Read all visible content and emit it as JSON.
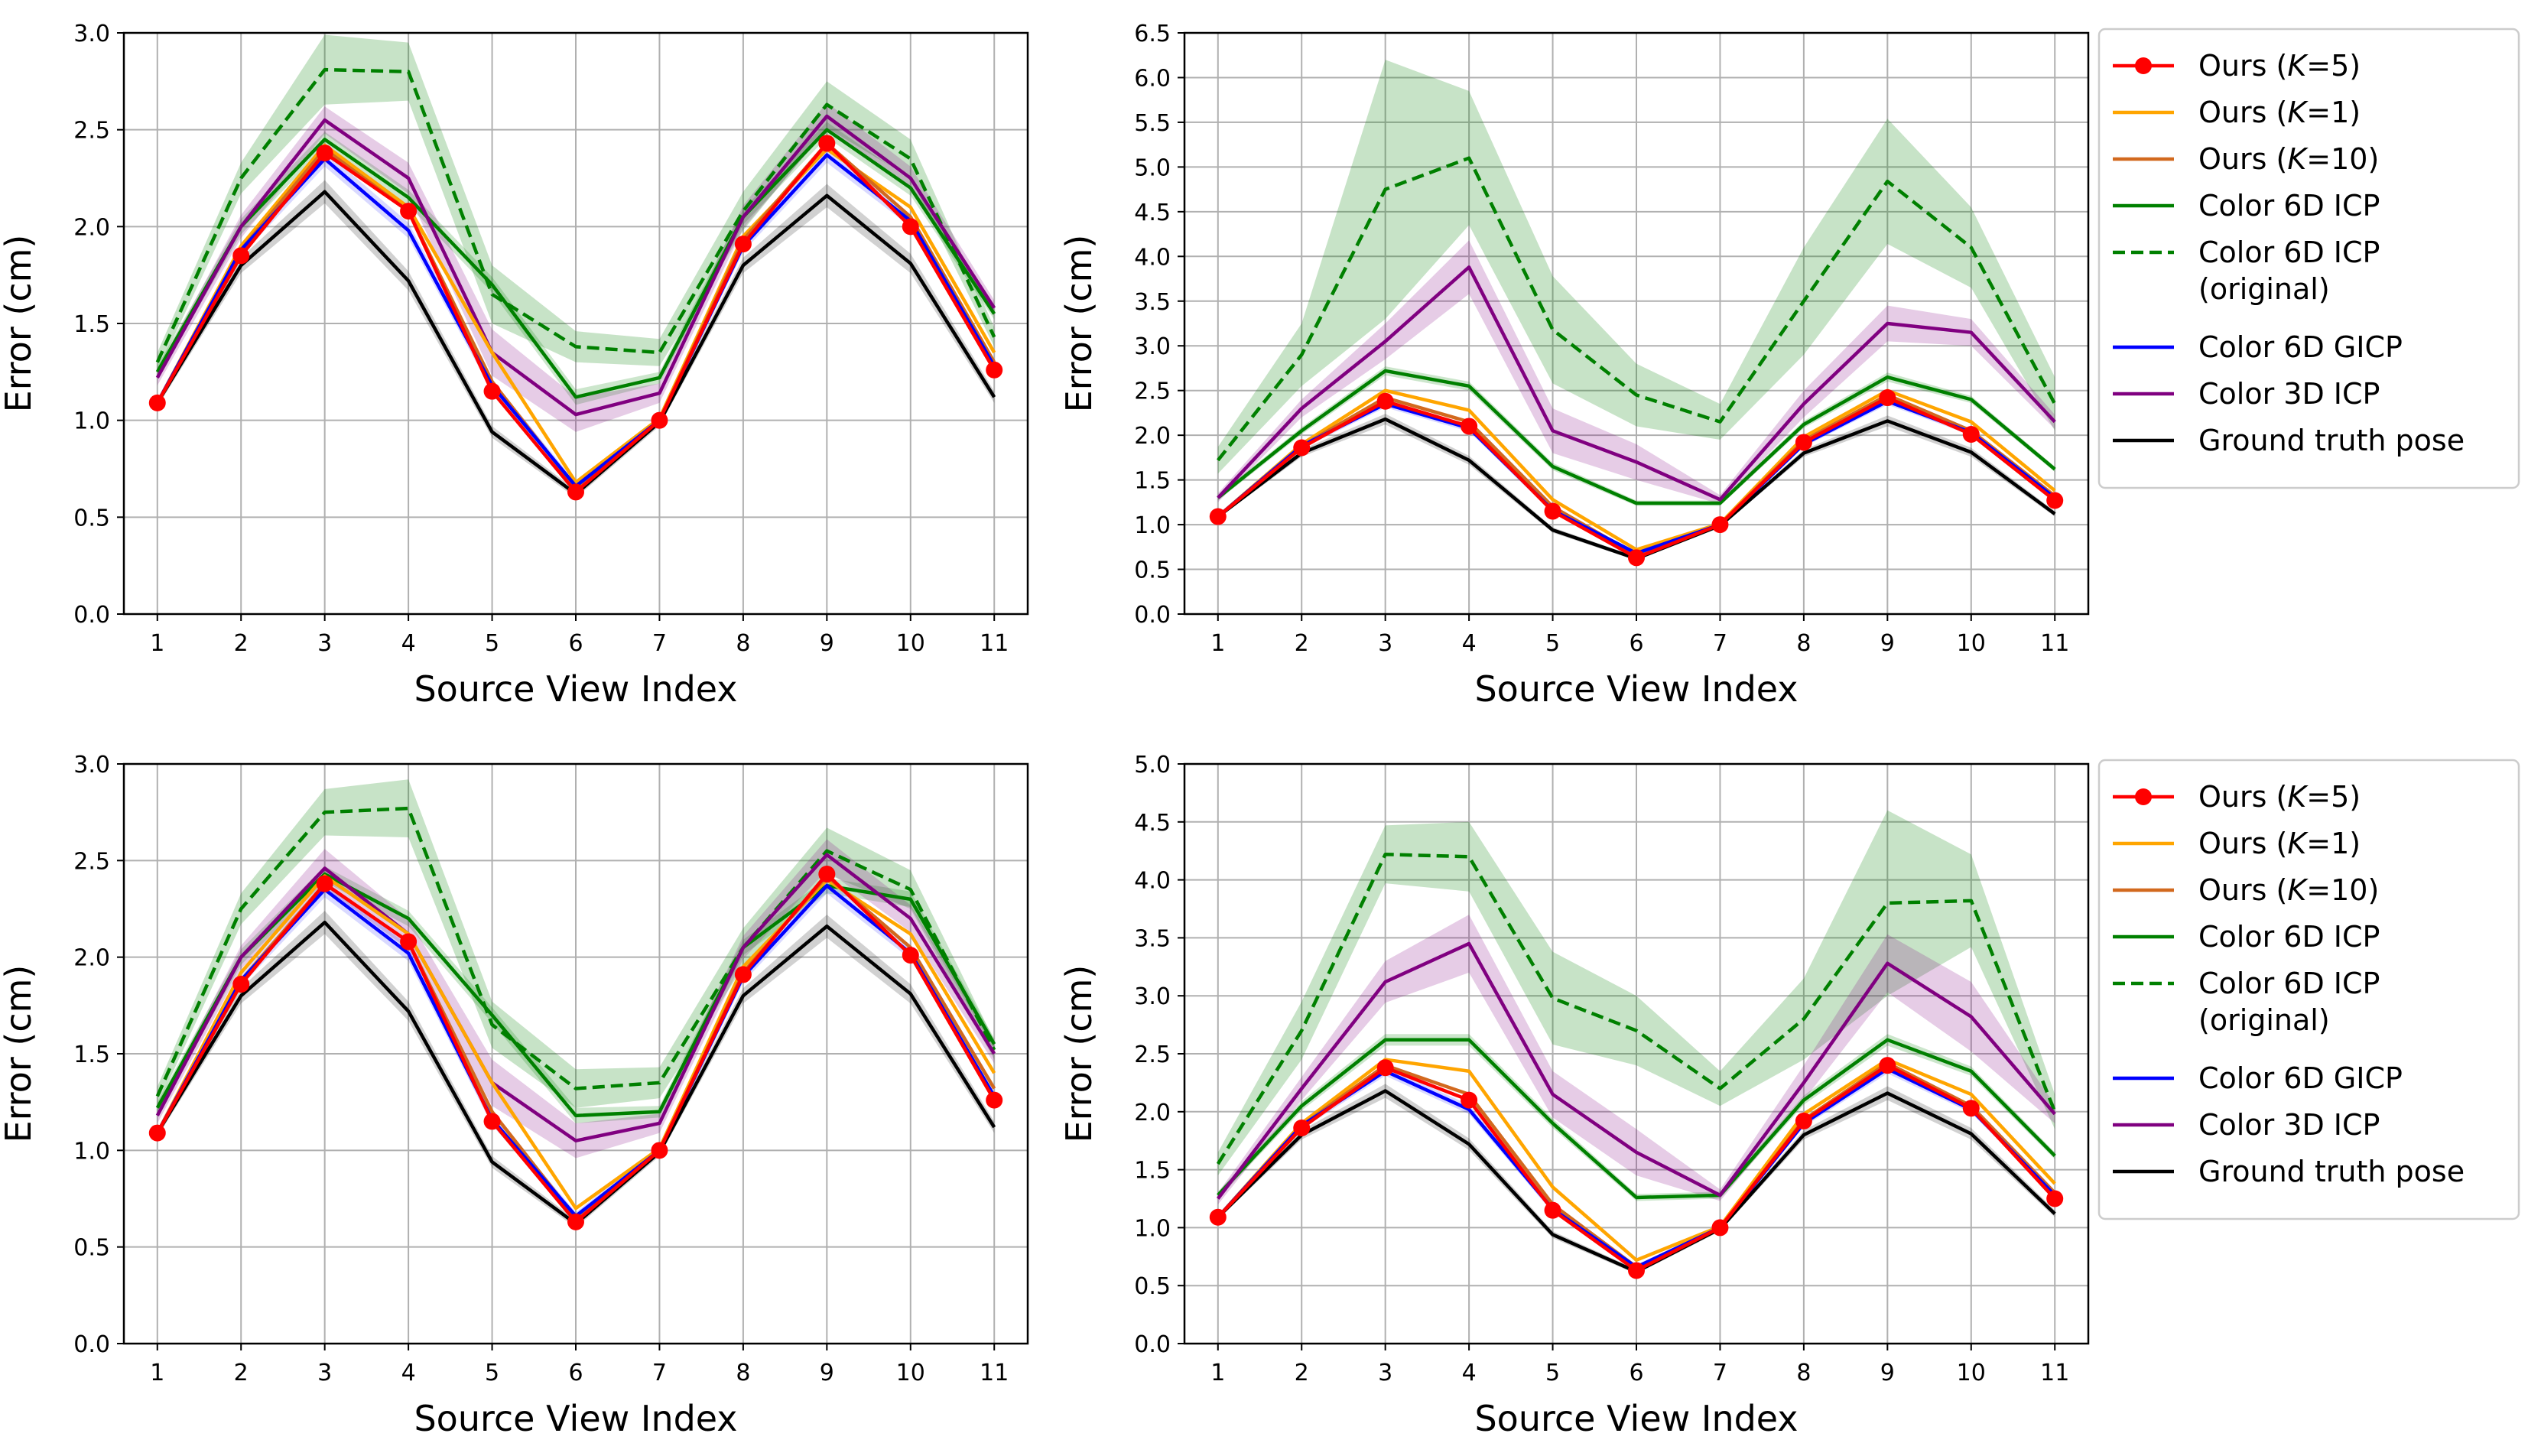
{
  "chart_data": [
    {
      "type": "line",
      "panel": "top-left",
      "xlabel": "Source View Index",
      "ylabel": "Error (cm)",
      "x": [
        1,
        2,
        3,
        4,
        5,
        6,
        7,
        8,
        9,
        10,
        11
      ],
      "xticks": [
        "1",
        "2",
        "3",
        "4",
        "5",
        "6",
        "7",
        "8",
        "9",
        "10",
        "11"
      ],
      "ylim": [
        0,
        3.0
      ],
      "yticks": [
        "0.0",
        "0.5",
        "1.0",
        "1.5",
        "2.0",
        "2.5",
        "3.0"
      ],
      "grid": true,
      "legend": null,
      "series": [
        {
          "name": "Color 6D ICP (original)",
          "values": [
            1.3,
            2.25,
            2.81,
            2.8,
            1.65,
            1.38,
            1.35,
            2.08,
            2.63,
            2.35,
            1.43
          ],
          "band": [
            0.05,
            0.08,
            0.18,
            0.15,
            0.15,
            0.08,
            0.07,
            0.1,
            0.12,
            0.1,
            0.05
          ]
        },
        {
          "name": "Color 6D ICP",
          "values": [
            1.25,
            2.0,
            2.45,
            2.15,
            1.7,
            1.12,
            1.22,
            2.05,
            2.5,
            2.2,
            1.55
          ],
          "band": [
            0.03,
            0.04,
            0.04,
            0.04,
            0.04,
            0.04,
            0.03,
            0.04,
            0.04,
            0.04,
            0.03
          ]
        },
        {
          "name": "Color 3D ICP",
          "values": [
            1.22,
            2.0,
            2.55,
            2.25,
            1.35,
            1.03,
            1.14,
            2.05,
            2.57,
            2.25,
            1.58
          ],
          "band": [
            0.04,
            0.06,
            0.07,
            0.08,
            0.12,
            0.09,
            0.05,
            0.06,
            0.07,
            0.06,
            0.04
          ]
        },
        {
          "name": "Ours (K=1)",
          "values": [
            1.09,
            1.9,
            2.42,
            2.1,
            1.35,
            0.68,
            1.01,
            1.95,
            2.4,
            2.1,
            1.35
          ],
          "band": null
        },
        {
          "name": "Ours (K=10)",
          "values": [
            1.09,
            1.88,
            2.4,
            2.08,
            1.2,
            0.65,
            1.0,
            1.93,
            2.43,
            2.05,
            1.3
          ],
          "band": null
        },
        {
          "name": "Color 6D GICP",
          "values": [
            1.09,
            1.88,
            2.35,
            1.98,
            1.18,
            0.66,
            1.0,
            1.9,
            2.37,
            2.03,
            1.28
          ],
          "band": [
            0.02,
            0.03,
            0.04,
            0.04,
            0.03,
            0.02,
            0.02,
            0.03,
            0.04,
            0.03,
            0.02
          ]
        },
        {
          "name": "Ground truth pose",
          "values": [
            1.09,
            1.8,
            2.18,
            1.72,
            0.94,
            0.62,
            0.99,
            1.8,
            2.16,
            1.81,
            1.12
          ],
          "band": [
            0.02,
            0.04,
            0.06,
            0.05,
            0.03,
            0.02,
            0.02,
            0.04,
            0.06,
            0.05,
            0.03
          ]
        },
        {
          "name": "Ours (K=5)",
          "values": [
            1.09,
            1.85,
            2.38,
            2.08,
            1.15,
            0.63,
            1.0,
            1.91,
            2.43,
            2.0,
            1.26
          ],
          "band": null
        }
      ]
    },
    {
      "type": "line",
      "panel": "top-right",
      "xlabel": "Source View Index",
      "ylabel": "Error (cm)",
      "x": [
        1,
        2,
        3,
        4,
        5,
        6,
        7,
        8,
        9,
        10,
        11
      ],
      "xticks": [
        "1",
        "2",
        "3",
        "4",
        "5",
        "6",
        "7",
        "8",
        "9",
        "10",
        "11"
      ],
      "ylim": [
        0,
        6.5
      ],
      "yticks": [
        "0.0",
        "0.5",
        "1.0",
        "1.5",
        "2.0",
        "2.5",
        "3.0",
        "3.5",
        "4.0",
        "4.5",
        "5.0",
        "5.5",
        "6.0",
        "6.5"
      ],
      "grid": true,
      "legend": "right",
      "series": [
        {
          "name": "Color 6D ICP (original)",
          "values": [
            1.72,
            2.9,
            4.75,
            5.1,
            3.18,
            2.45,
            2.15,
            3.5,
            4.84,
            4.1,
            2.35
          ],
          "band": [
            0.15,
            0.35,
            1.45,
            0.75,
            0.6,
            0.35,
            0.2,
            0.6,
            0.7,
            0.45,
            0.3
          ]
        },
        {
          "name": "Color 6D ICP",
          "values": [
            1.3,
            2.05,
            2.72,
            2.55,
            1.65,
            1.24,
            1.24,
            2.12,
            2.65,
            2.4,
            1.62
          ],
          "band": [
            0.03,
            0.04,
            0.05,
            0.05,
            0.04,
            0.03,
            0.03,
            0.04,
            0.05,
            0.04,
            0.03
          ]
        },
        {
          "name": "Color 3D ICP",
          "values": [
            1.3,
            2.3,
            3.05,
            3.88,
            2.05,
            1.7,
            1.28,
            2.35,
            3.25,
            3.15,
            2.15
          ],
          "band": [
            0.05,
            0.1,
            0.2,
            0.3,
            0.25,
            0.2,
            0.05,
            0.15,
            0.2,
            0.15,
            0.08
          ]
        },
        {
          "name": "Ours (K=1)",
          "values": [
            1.09,
            1.9,
            2.5,
            2.28,
            1.28,
            0.72,
            1.01,
            1.98,
            2.5,
            2.15,
            1.38
          ],
          "band": null
        },
        {
          "name": "Ours (K=10)",
          "values": [
            1.09,
            1.88,
            2.42,
            2.15,
            1.2,
            0.66,
            1.0,
            1.94,
            2.45,
            2.05,
            1.32
          ],
          "band": null
        },
        {
          "name": "Color 6D GICP",
          "values": [
            1.09,
            1.88,
            2.35,
            2.08,
            1.16,
            0.68,
            1.0,
            1.9,
            2.38,
            2.03,
            1.3
          ],
          "band": [
            0.02,
            0.03,
            0.04,
            0.04,
            0.03,
            0.02,
            0.02,
            0.03,
            0.04,
            0.03,
            0.02
          ]
        },
        {
          "name": "Ground truth pose",
          "values": [
            1.09,
            1.8,
            2.18,
            1.72,
            0.94,
            0.62,
            0.99,
            1.8,
            2.16,
            1.81,
            1.12
          ],
          "band": [
            0.02,
            0.04,
            0.06,
            0.05,
            0.03,
            0.02,
            0.02,
            0.04,
            0.06,
            0.05,
            0.03
          ]
        },
        {
          "name": "Ours (K=5)",
          "values": [
            1.09,
            1.86,
            2.38,
            2.1,
            1.15,
            0.63,
            1.0,
            1.92,
            2.42,
            2.01,
            1.27
          ],
          "band": null
        }
      ]
    },
    {
      "type": "line",
      "panel": "bottom-left",
      "xlabel": "Source View Index",
      "ylabel": "Error (cm)",
      "x": [
        1,
        2,
        3,
        4,
        5,
        6,
        7,
        8,
        9,
        10,
        11
      ],
      "xticks": [
        "1",
        "2",
        "3",
        "4",
        "5",
        "6",
        "7",
        "8",
        "9",
        "10",
        "11"
      ],
      "ylim": [
        0,
        3.0
      ],
      "yticks": [
        "0.0",
        "0.5",
        "1.0",
        "1.5",
        "2.0",
        "2.5",
        "3.0"
      ],
      "grid": true,
      "legend": null,
      "series": [
        {
          "name": "Color 6D ICP (original)",
          "values": [
            1.28,
            2.25,
            2.75,
            2.77,
            1.65,
            1.32,
            1.35,
            2.05,
            2.55,
            2.35,
            1.52
          ],
          "band": [
            0.05,
            0.08,
            0.12,
            0.15,
            0.12,
            0.1,
            0.08,
            0.1,
            0.12,
            0.1,
            0.05
          ]
        },
        {
          "name": "Color 6D ICP",
          "values": [
            1.22,
            2.0,
            2.43,
            2.2,
            1.7,
            1.18,
            1.2,
            2.05,
            2.37,
            2.3,
            1.55
          ],
          "band": [
            0.03,
            0.04,
            0.04,
            0.04,
            0.04,
            0.04,
            0.03,
            0.04,
            0.04,
            0.04,
            0.03
          ]
        },
        {
          "name": "Color 3D ICP",
          "values": [
            1.18,
            2.0,
            2.46,
            2.12,
            1.35,
            1.05,
            1.14,
            2.05,
            2.53,
            2.2,
            1.5
          ],
          "band": [
            0.04,
            0.06,
            0.1,
            0.08,
            0.12,
            0.09,
            0.05,
            0.06,
            0.08,
            0.07,
            0.05
          ]
        },
        {
          "name": "Ours (K=1)",
          "values": [
            1.09,
            1.92,
            2.42,
            2.12,
            1.35,
            0.7,
            1.01,
            1.95,
            2.4,
            2.12,
            1.4
          ],
          "band": null
        },
        {
          "name": "Ours (K=10)",
          "values": [
            1.09,
            1.88,
            2.38,
            2.08,
            1.2,
            0.65,
            1.0,
            1.92,
            2.42,
            2.05,
            1.32
          ],
          "band": null
        },
        {
          "name": "Color 6D GICP",
          "values": [
            1.09,
            1.88,
            2.35,
            2.02,
            1.16,
            0.66,
            1.0,
            1.9,
            2.37,
            2.02,
            1.28
          ],
          "band": [
            0.02,
            0.03,
            0.04,
            0.04,
            0.03,
            0.02,
            0.02,
            0.03,
            0.04,
            0.03,
            0.02
          ]
        },
        {
          "name": "Ground truth pose",
          "values": [
            1.09,
            1.8,
            2.18,
            1.72,
            0.94,
            0.62,
            0.99,
            1.8,
            2.16,
            1.81,
            1.12
          ],
          "band": [
            0.02,
            0.04,
            0.06,
            0.05,
            0.03,
            0.02,
            0.02,
            0.04,
            0.06,
            0.05,
            0.03
          ]
        },
        {
          "name": "Ours (K=5)",
          "values": [
            1.09,
            1.86,
            2.38,
            2.08,
            1.15,
            0.63,
            1.0,
            1.91,
            2.43,
            2.01,
            1.26
          ],
          "band": null
        }
      ]
    },
    {
      "type": "line",
      "panel": "bottom-right",
      "xlabel": "Source View Index",
      "ylabel": "Error (cm)",
      "x": [
        1,
        2,
        3,
        4,
        5,
        6,
        7,
        8,
        9,
        10,
        11
      ],
      "xticks": [
        "1",
        "2",
        "3",
        "4",
        "5",
        "6",
        "7",
        "8",
        "9",
        "10",
        "11"
      ],
      "ylim": [
        0,
        5.0
      ],
      "yticks": [
        "0.0",
        "0.5",
        "1.0",
        "1.5",
        "2.0",
        "2.5",
        "3.0",
        "3.5",
        "4.0",
        "4.5",
        "5.0"
      ],
      "grid": true,
      "legend": "right",
      "series": [
        {
          "name": "Color 6D ICP (original)",
          "values": [
            1.55,
            2.7,
            4.22,
            4.2,
            2.98,
            2.7,
            2.2,
            2.8,
            3.8,
            3.82,
            2.0
          ],
          "band": [
            0.1,
            0.25,
            0.25,
            0.3,
            0.4,
            0.3,
            0.15,
            0.35,
            0.8,
            0.4,
            0.15
          ]
        },
        {
          "name": "Color 6D ICP",
          "values": [
            1.28,
            2.05,
            2.62,
            2.62,
            1.9,
            1.26,
            1.28,
            2.1,
            2.62,
            2.35,
            1.62
          ],
          "band": [
            0.03,
            0.04,
            0.05,
            0.05,
            0.04,
            0.03,
            0.03,
            0.04,
            0.05,
            0.04,
            0.03
          ]
        },
        {
          "name": "Color 3D ICP",
          "values": [
            1.25,
            2.2,
            3.12,
            3.45,
            2.15,
            1.65,
            1.28,
            2.25,
            3.28,
            2.82,
            1.98
          ],
          "band": [
            0.05,
            0.1,
            0.18,
            0.25,
            0.2,
            0.2,
            0.05,
            0.15,
            0.25,
            0.3,
            0.08
          ]
        },
        {
          "name": "Ours (K=1)",
          "values": [
            1.09,
            1.9,
            2.45,
            2.35,
            1.35,
            0.72,
            1.01,
            1.98,
            2.45,
            2.15,
            1.38
          ],
          "band": null
        },
        {
          "name": "Ours (K=10)",
          "values": [
            1.09,
            1.88,
            2.4,
            2.15,
            1.2,
            0.66,
            1.0,
            1.93,
            2.42,
            2.05,
            1.3
          ],
          "band": null
        },
        {
          "name": "Color 6D GICP",
          "values": [
            1.09,
            1.88,
            2.35,
            2.02,
            1.16,
            0.66,
            1.0,
            1.9,
            2.37,
            2.02,
            1.28
          ],
          "band": [
            0.02,
            0.03,
            0.04,
            0.04,
            0.03,
            0.02,
            0.02,
            0.03,
            0.04,
            0.03,
            0.02
          ]
        },
        {
          "name": "Ground truth pose",
          "values": [
            1.09,
            1.8,
            2.18,
            1.72,
            0.94,
            0.62,
            0.99,
            1.8,
            2.16,
            1.81,
            1.12
          ],
          "band": [
            0.02,
            0.04,
            0.06,
            0.05,
            0.03,
            0.02,
            0.02,
            0.04,
            0.06,
            0.05,
            0.03
          ]
        },
        {
          "name": "Ours (K=5)",
          "values": [
            1.09,
            1.86,
            2.38,
            2.1,
            1.15,
            0.63,
            1.0,
            1.92,
            2.4,
            2.03,
            1.25
          ],
          "band": null
        }
      ]
    }
  ],
  "legend": {
    "entries": [
      {
        "key": "ours5",
        "text": "Ours (",
        "italic": "K",
        "suffix": "=5)",
        "color": "#ff0000",
        "dashed": false,
        "marker": true
      },
      {
        "key": "ours1",
        "text": "Ours (",
        "italic": "K",
        "suffix": "=1)",
        "color": "#ffa500",
        "dashed": false,
        "marker": false
      },
      {
        "key": "ours10",
        "text": "Ours (",
        "italic": "K",
        "suffix": "=10)",
        "color": "#d2691e",
        "dashed": false,
        "marker": false
      },
      {
        "key": "icp6d",
        "text": "Color 6D ICP",
        "italic": "",
        "suffix": "",
        "color": "#008000",
        "dashed": false,
        "marker": false
      },
      {
        "key": "icp6dorig",
        "text": "Color 6D ICP",
        "italic": "",
        "suffix": "",
        "line2": "(original)",
        "color": "#008000",
        "dashed": true,
        "marker": false
      },
      {
        "key": "gicp",
        "text": "Color 6D GICP",
        "italic": "",
        "suffix": "",
        "color": "#0000ff",
        "dashed": false,
        "marker": false
      },
      {
        "key": "icp3d",
        "text": "Color 3D ICP",
        "italic": "",
        "suffix": "",
        "color": "#800080",
        "dashed": false,
        "marker": false
      },
      {
        "key": "gt",
        "text": "Ground truth pose",
        "italic": "",
        "suffix": "",
        "color": "#000000",
        "dashed": false,
        "marker": false
      }
    ]
  },
  "series_colors": {
    "Color 6D ICP (original)": "#008000",
    "Color 6D ICP": "#008000",
    "Color 3D ICP": "#800080",
    "Ours (K=1)": "#ffa500",
    "Ours (K=10)": "#d2691e",
    "Color 6D GICP": "#0000ff",
    "Ground truth pose": "#000000",
    "Ours (K=5)": "#ff0000"
  }
}
